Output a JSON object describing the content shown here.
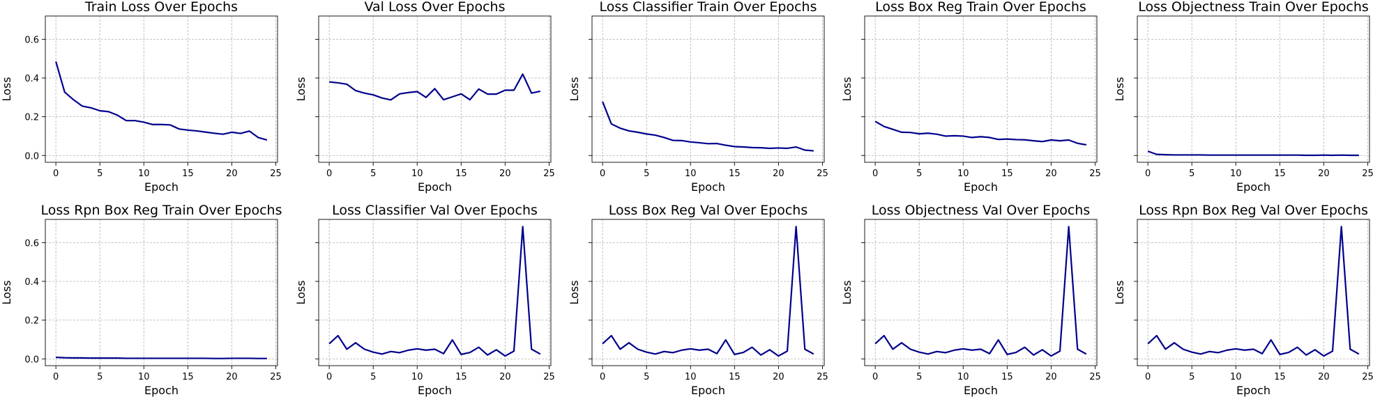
{
  "figure": {
    "line_color": "#00008b",
    "grid": true,
    "sharey": true
  },
  "chart_data": [
    {
      "type": "line",
      "title": "Train Loss Over Epochs",
      "xlabel": "Epoch",
      "ylabel": "Loss",
      "xlim": [
        -1.2,
        25.2
      ],
      "ylim": [
        -0.035,
        0.72
      ],
      "xticks": [
        0,
        5,
        10,
        15,
        20,
        25
      ],
      "yticks": [
        0.0,
        0.2,
        0.4,
        0.6
      ],
      "x": [
        0,
        1,
        2,
        3,
        4,
        5,
        6,
        7,
        8,
        9,
        10,
        11,
        12,
        13,
        14,
        15,
        16,
        17,
        18,
        19,
        20,
        21,
        22,
        23,
        24
      ],
      "series": [
        {
          "values": [
            0.485,
            0.327,
            0.288,
            0.255,
            0.246,
            0.231,
            0.226,
            0.208,
            0.18,
            0.18,
            0.172,
            0.16,
            0.16,
            0.158,
            0.137,
            0.131,
            0.127,
            0.121,
            0.115,
            0.11,
            0.12,
            0.114,
            0.126,
            0.093,
            0.08
          ]
        }
      ]
    },
    {
      "type": "line",
      "title": "Val Loss Over Epochs",
      "xlabel": "Epoch",
      "ylabel": "Loss",
      "xlim": [
        -1.2,
        25.2
      ],
      "ylim": [
        -0.035,
        0.72
      ],
      "xticks": [
        0,
        5,
        10,
        15,
        20,
        25
      ],
      "yticks": [
        0.0,
        0.2,
        0.4,
        0.6
      ],
      "x": [
        0,
        1,
        2,
        3,
        4,
        5,
        6,
        7,
        8,
        9,
        10,
        11,
        12,
        13,
        14,
        15,
        16,
        17,
        18,
        19,
        20,
        21,
        22,
        23,
        24
      ],
      "series": [
        {
          "values": [
            0.38,
            0.375,
            0.368,
            0.335,
            0.322,
            0.313,
            0.297,
            0.287,
            0.318,
            0.325,
            0.33,
            0.3,
            0.345,
            0.288,
            0.303,
            0.318,
            0.288,
            0.343,
            0.317,
            0.317,
            0.337,
            0.337,
            0.42,
            0.322,
            0.332
          ]
        }
      ]
    },
    {
      "type": "line",
      "title": "Loss Classifier Train Over Epochs",
      "xlabel": "Epoch",
      "ylabel": "Loss",
      "xlim": [
        -1.2,
        25.2
      ],
      "ylim": [
        -0.035,
        0.72
      ],
      "xticks": [
        0,
        5,
        10,
        15,
        20,
        25
      ],
      "yticks": [
        0.0,
        0.2,
        0.4,
        0.6
      ],
      "x": [
        0,
        1,
        2,
        3,
        4,
        5,
        6,
        7,
        8,
        9,
        10,
        11,
        12,
        13,
        14,
        15,
        16,
        17,
        18,
        19,
        20,
        21,
        22,
        23,
        24
      ],
      "series": [
        {
          "values": [
            0.278,
            0.163,
            0.141,
            0.127,
            0.12,
            0.111,
            0.105,
            0.093,
            0.078,
            0.077,
            0.07,
            0.066,
            0.061,
            0.062,
            0.053,
            0.046,
            0.044,
            0.041,
            0.04,
            0.037,
            0.039,
            0.037,
            0.044,
            0.028,
            0.024
          ]
        }
      ]
    },
    {
      "type": "line",
      "title": "Loss Box Reg Train Over Epochs",
      "xlabel": "Epoch",
      "ylabel": "Loss",
      "xlim": [
        -1.2,
        25.2
      ],
      "ylim": [
        -0.035,
        0.72
      ],
      "xticks": [
        0,
        5,
        10,
        15,
        20,
        25
      ],
      "yticks": [
        0.0,
        0.2,
        0.4,
        0.6
      ],
      "x": [
        0,
        1,
        2,
        3,
        4,
        5,
        6,
        7,
        8,
        9,
        10,
        11,
        12,
        13,
        14,
        15,
        16,
        17,
        18,
        19,
        20,
        21,
        22,
        23,
        24
      ],
      "series": [
        {
          "values": [
            0.176,
            0.15,
            0.135,
            0.12,
            0.119,
            0.112,
            0.115,
            0.11,
            0.1,
            0.102,
            0.1,
            0.093,
            0.097,
            0.093,
            0.083,
            0.085,
            0.082,
            0.081,
            0.076,
            0.072,
            0.08,
            0.076,
            0.08,
            0.063,
            0.055
          ]
        }
      ]
    },
    {
      "type": "line",
      "title": "Loss Objectness Train Over Epochs",
      "xlabel": "Epoch",
      "ylabel": "Loss",
      "xlim": [
        -1.2,
        25.2
      ],
      "ylim": [
        -0.035,
        0.72
      ],
      "xticks": [
        0,
        5,
        10,
        15,
        20,
        25
      ],
      "yticks": [
        0.0,
        0.2,
        0.4,
        0.6
      ],
      "x": [
        0,
        1,
        2,
        3,
        4,
        5,
        6,
        7,
        8,
        9,
        10,
        11,
        12,
        13,
        14,
        15,
        16,
        17,
        18,
        19,
        20,
        21,
        22,
        23,
        24
      ],
      "series": [
        {
          "values": [
            0.022,
            0.006,
            0.004,
            0.003,
            0.003,
            0.003,
            0.003,
            0.002,
            0.002,
            0.002,
            0.002,
            0.002,
            0.002,
            0.002,
            0.002,
            0.002,
            0.002,
            0.002,
            0.001,
            0.001,
            0.002,
            0.001,
            0.002,
            0.001,
            0.001
          ]
        }
      ]
    },
    {
      "type": "line",
      "title": "Loss Rpn Box Reg Train Over Epochs",
      "xlabel": "Epoch",
      "ylabel": "Loss",
      "xlim": [
        -1.2,
        25.2
      ],
      "ylim": [
        -0.035,
        0.72
      ],
      "xticks": [
        0,
        5,
        10,
        15,
        20,
        25
      ],
      "yticks": [
        0.0,
        0.2,
        0.4,
        0.6
      ],
      "x": [
        0,
        1,
        2,
        3,
        4,
        5,
        6,
        7,
        8,
        9,
        10,
        11,
        12,
        13,
        14,
        15,
        16,
        17,
        18,
        19,
        20,
        21,
        22,
        23,
        24
      ],
      "series": [
        {
          "values": [
            0.008,
            0.006,
            0.005,
            0.005,
            0.004,
            0.004,
            0.004,
            0.004,
            0.003,
            0.003,
            0.003,
            0.003,
            0.003,
            0.003,
            0.003,
            0.003,
            0.003,
            0.003,
            0.002,
            0.002,
            0.003,
            0.003,
            0.003,
            0.002,
            0.002
          ]
        }
      ]
    },
    {
      "type": "line",
      "title": "Loss Classifier Val Over Epochs",
      "xlabel": "Epoch",
      "ylabel": "Loss",
      "xlim": [
        -1.2,
        25.2
      ],
      "ylim": [
        -0.035,
        0.72
      ],
      "xticks": [
        0,
        5,
        10,
        15,
        20,
        25
      ],
      "yticks": [
        0.0,
        0.2,
        0.4,
        0.6
      ],
      "x": [
        0,
        1,
        2,
        3,
        4,
        5,
        6,
        7,
        8,
        9,
        10,
        11,
        12,
        13,
        14,
        15,
        16,
        17,
        18,
        19,
        20,
        21,
        22,
        23,
        24
      ],
      "series": [
        {
          "values": [
            0.078,
            0.12,
            0.05,
            0.083,
            0.05,
            0.035,
            0.025,
            0.038,
            0.032,
            0.045,
            0.052,
            0.045,
            0.05,
            0.027,
            0.098,
            0.023,
            0.033,
            0.06,
            0.02,
            0.047,
            0.015,
            0.04,
            0.683,
            0.05,
            0.025
          ]
        }
      ]
    },
    {
      "type": "line",
      "title": "Loss Box Reg Val Over Epochs",
      "xlabel": "Epoch",
      "ylabel": "Loss",
      "xlim": [
        -1.2,
        25.2
      ],
      "ylim": [
        -0.035,
        0.72
      ],
      "xticks": [
        0,
        5,
        10,
        15,
        20,
        25
      ],
      "yticks": [
        0.0,
        0.2,
        0.4,
        0.6
      ],
      "x": [
        0,
        1,
        2,
        3,
        4,
        5,
        6,
        7,
        8,
        9,
        10,
        11,
        12,
        13,
        14,
        15,
        16,
        17,
        18,
        19,
        20,
        21,
        22,
        23,
        24
      ],
      "series": [
        {
          "values": [
            0.078,
            0.12,
            0.05,
            0.083,
            0.05,
            0.035,
            0.025,
            0.038,
            0.032,
            0.045,
            0.052,
            0.045,
            0.05,
            0.027,
            0.098,
            0.023,
            0.033,
            0.06,
            0.02,
            0.047,
            0.015,
            0.04,
            0.683,
            0.05,
            0.025
          ]
        }
      ]
    },
    {
      "type": "line",
      "title": "Loss Objectness Val Over Epochs",
      "xlabel": "Epoch",
      "ylabel": "Loss",
      "xlim": [
        -1.2,
        25.2
      ],
      "ylim": [
        -0.035,
        0.72
      ],
      "xticks": [
        0,
        5,
        10,
        15,
        20,
        25
      ],
      "yticks": [
        0.0,
        0.2,
        0.4,
        0.6
      ],
      "x": [
        0,
        1,
        2,
        3,
        4,
        5,
        6,
        7,
        8,
        9,
        10,
        11,
        12,
        13,
        14,
        15,
        16,
        17,
        18,
        19,
        20,
        21,
        22,
        23,
        24
      ],
      "series": [
        {
          "values": [
            0.078,
            0.12,
            0.05,
            0.083,
            0.05,
            0.035,
            0.025,
            0.038,
            0.032,
            0.045,
            0.052,
            0.045,
            0.05,
            0.027,
            0.098,
            0.023,
            0.033,
            0.06,
            0.02,
            0.047,
            0.015,
            0.04,
            0.683,
            0.05,
            0.025
          ]
        }
      ]
    },
    {
      "type": "line",
      "title": "Loss Rpn Box Reg Val Over Epochs",
      "xlabel": "Epoch",
      "ylabel": "Loss",
      "xlim": [
        -1.2,
        25.2
      ],
      "ylim": [
        -0.035,
        0.72
      ],
      "xticks": [
        0,
        5,
        10,
        15,
        20,
        25
      ],
      "yticks": [
        0.0,
        0.2,
        0.4,
        0.6
      ],
      "x": [
        0,
        1,
        2,
        3,
        4,
        5,
        6,
        7,
        8,
        9,
        10,
        11,
        12,
        13,
        14,
        15,
        16,
        17,
        18,
        19,
        20,
        21,
        22,
        23,
        24
      ],
      "series": [
        {
          "values": [
            0.078,
            0.12,
            0.05,
            0.083,
            0.05,
            0.035,
            0.025,
            0.038,
            0.032,
            0.045,
            0.052,
            0.045,
            0.05,
            0.027,
            0.098,
            0.023,
            0.033,
            0.06,
            0.02,
            0.047,
            0.015,
            0.04,
            0.683,
            0.05,
            0.025
          ]
        }
      ]
    }
  ]
}
